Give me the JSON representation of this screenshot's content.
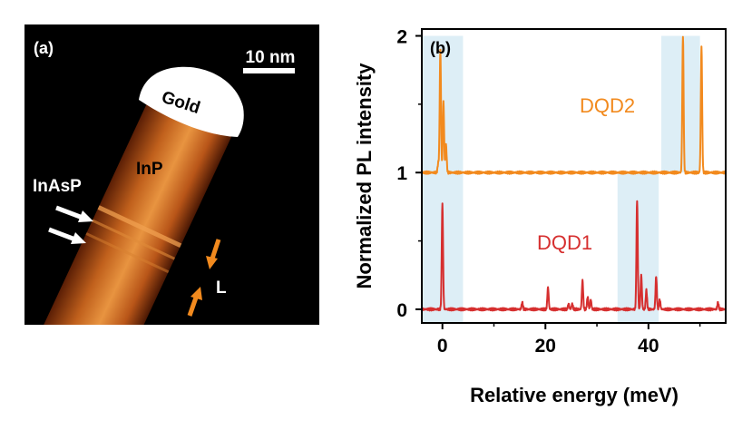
{
  "panel_a": {
    "label": "(a)",
    "scale_bar_label": "10 nm",
    "gold_label": "Gold",
    "inp_label": "InP",
    "inasp_label": "InAsP",
    "l_label": "L",
    "colors": {
      "background": "#000000",
      "nanowire": "#d77a2a",
      "gold": "#ffffff",
      "arrow_white": "#ffffff",
      "arrow_orange": "#f28a1e"
    }
  },
  "chart_data": {
    "type": "line",
    "panel_label": "(b)",
    "xlabel": "Relative energy (meV)",
    "ylabel": "Normalized PL intensity",
    "xlim": [
      -4,
      55
    ],
    "ylim": [
      -0.1,
      2.05
    ],
    "xticks": [
      0,
      20,
      40
    ],
    "yticks": [
      0,
      1,
      2
    ],
    "x_tick_labels": [
      "0",
      "20",
      "40"
    ],
    "y_tick_labels": [
      "0",
      "1",
      "2"
    ],
    "grid": false,
    "highlight_bands": [
      {
        "x0": -4,
        "x1": 4,
        "y0": -0.1,
        "y1": 2.0,
        "color": "#ddeef6"
      },
      {
        "x0": 34,
        "x1": 42,
        "y0": -0.1,
        "y1": 1.0,
        "color": "#ddeef6"
      },
      {
        "x0": 42.5,
        "x1": 50,
        "y0": 1.0,
        "y1": 2.0,
        "color": "#ddeef6"
      }
    ],
    "series": [
      {
        "name": "DQD2",
        "color": "#f28a1e",
        "baseline": 1.0,
        "peaks": [
          [
            -4.5,
            0.08
          ],
          [
            -0.8,
            0.07
          ],
          [
            -0.4,
            0.9
          ],
          [
            0.2,
            0.52
          ],
          [
            0.7,
            0.2
          ],
          [
            46.7,
            1.0
          ],
          [
            50.3,
            0.92
          ]
        ]
      },
      {
        "name": "DQD1",
        "color": "#d62f2f",
        "baseline": 0.0,
        "peaks": [
          [
            0.0,
            0.77
          ],
          [
            15.5,
            0.05
          ],
          [
            20.5,
            0.16
          ],
          [
            24.5,
            0.04
          ],
          [
            25.2,
            0.04
          ],
          [
            27.2,
            0.21
          ],
          [
            28.2,
            0.09
          ],
          [
            28.8,
            0.07
          ],
          [
            37.8,
            0.8
          ],
          [
            38.6,
            0.25
          ],
          [
            39.6,
            0.14
          ],
          [
            41.5,
            0.24
          ],
          [
            42.2,
            0.07
          ],
          [
            53.5,
            0.05
          ]
        ]
      }
    ]
  }
}
